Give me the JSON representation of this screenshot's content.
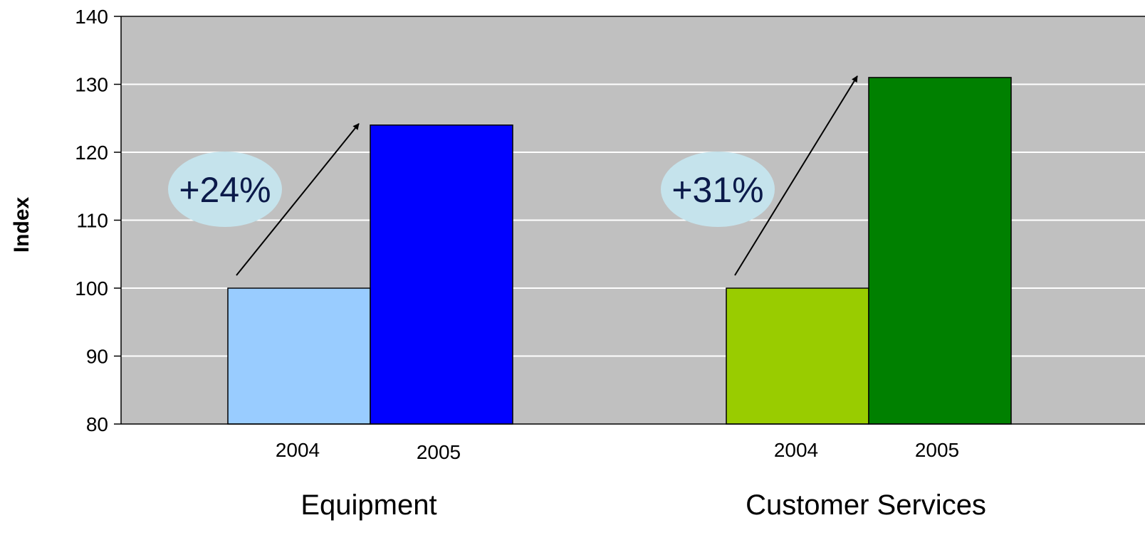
{
  "chart_data": {
    "type": "bar",
    "ylabel": "Index",
    "ylim": [
      80,
      140
    ],
    "yticks": [
      80,
      90,
      100,
      110,
      120,
      130,
      140
    ],
    "grid": true,
    "groups": [
      {
        "category": "Equipment",
        "bars": [
          {
            "label": "2004",
            "value": 100,
            "color": "#99ccff"
          },
          {
            "label": "2005",
            "value": 124,
            "color": "#0000ff"
          }
        ],
        "annotation": "+24%"
      },
      {
        "category": "Customer Services",
        "bars": [
          {
            "label": "2004",
            "value": 100,
            "color": "#99cc00"
          },
          {
            "label": "2005",
            "value": 131,
            "color": "#008000"
          }
        ],
        "annotation": "+31%"
      }
    ],
    "colors": {
      "plot_background": "#c0c0c0",
      "gridline": "#ffffff",
      "annotation_bubble": "#c5e3ec",
      "annotation_text": "#0b1a4a",
      "arrow": "#000000"
    }
  }
}
